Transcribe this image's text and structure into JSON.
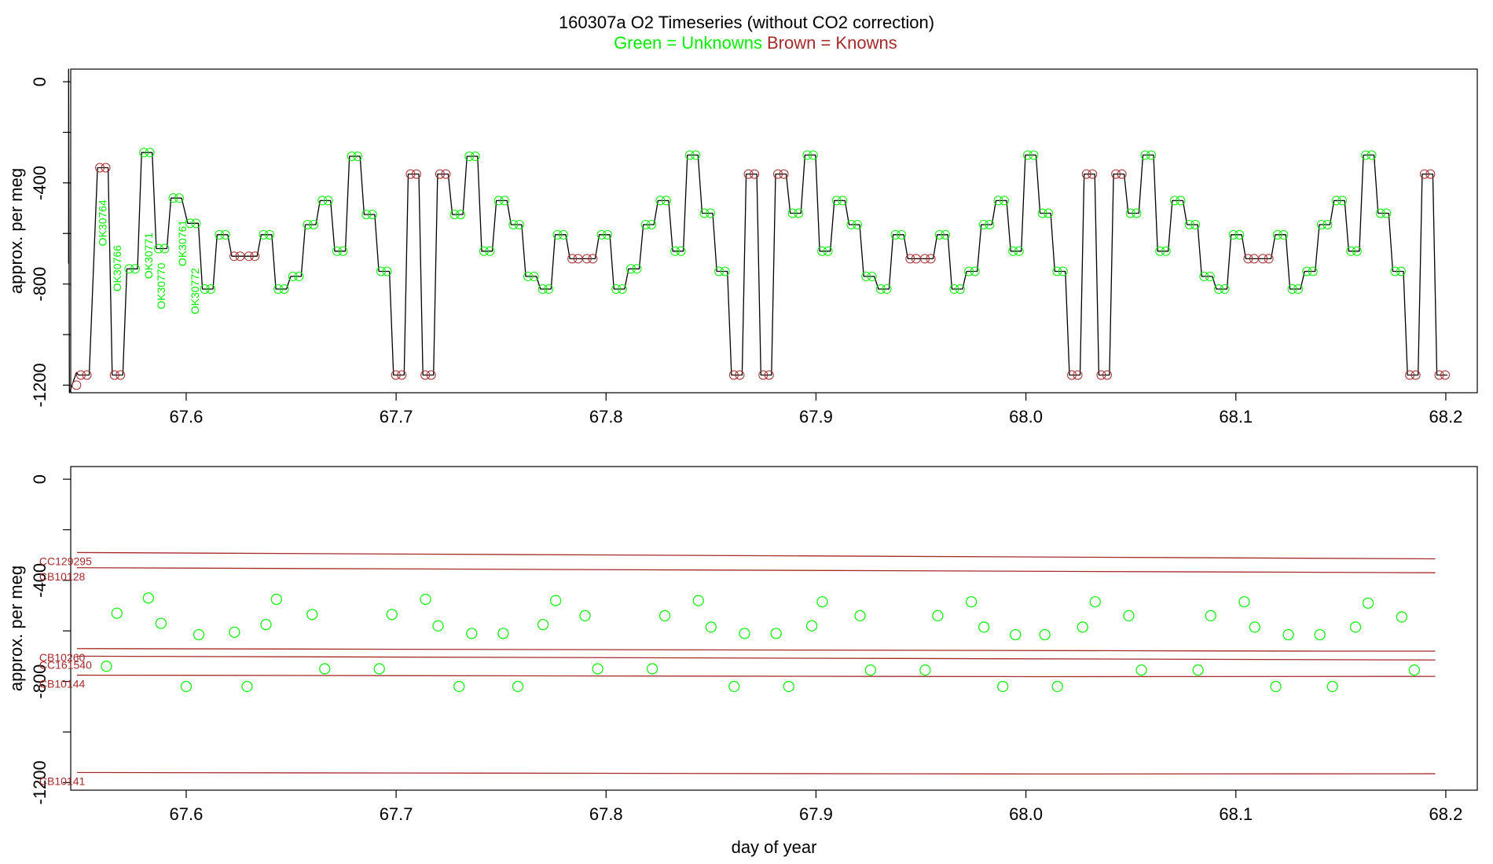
{
  "title": {
    "line1": "160307a   O2 Timeseries (without CO2 correction)",
    "green": "Green = Unknowns",
    "brown": "Brown = Knowns"
  },
  "colors": {
    "unknown": "#00ee00",
    "known": "#a52a2a",
    "trace": "#000000"
  },
  "chart_data": [
    {
      "type": "line",
      "title": "",
      "ylabel": "approx. per meg",
      "xlabel": "",
      "xlim": [
        67.545,
        68.215
      ],
      "ylim": [
        -1230,
        50
      ],
      "xticks": [
        "67.6",
        "67.7",
        "67.8",
        "67.9",
        "68.0",
        "68.1",
        "68.2"
      ],
      "yticks": [
        "0",
        "-400",
        "-800",
        "-1200"
      ],
      "unknown_labels": [
        {
          "text": "OK30764",
          "x": 67.562,
          "y": -650
        },
        {
          "text": "OK30766",
          "x": 67.569,
          "y": -830
        },
        {
          "text": "OK30771",
          "x": 67.584,
          "y": -780
        },
        {
          "text": "OK30770",
          "x": 67.59,
          "y": -900
        },
        {
          "text": "OK30761",
          "x": 67.6,
          "y": -730
        },
        {
          "text": "OK30772",
          "x": 67.606,
          "y": -920
        }
      ],
      "series": [
        {
          "x": [
            67.548,
            67.557,
            67.564,
            67.571,
            67.578,
            67.585,
            67.592,
            67.6,
            67.607,
            67.614,
            67.621,
            67.628,
            67.635,
            67.642,
            67.649,
            67.656,
            67.663,
            67.67,
            67.677,
            67.684,
            67.691,
            67.698,
            67.705,
            67.712,
            67.719,
            67.726,
            67.733,
            67.74,
            67.747,
            67.754,
            67.761,
            67.768,
            67.775,
            67.782,
            67.789,
            67.796,
            67.803,
            67.81,
            67.817,
            67.824,
            67.831,
            67.838,
            67.845,
            67.852,
            67.859,
            67.866,
            67.873,
            67.88,
            67.887,
            67.894,
            67.901,
            67.908,
            67.915,
            67.922,
            67.929,
            67.936,
            67.943,
            67.95,
            67.957,
            67.964,
            67.971,
            67.978,
            67.985,
            67.992,
            67.999,
            68.006,
            68.013,
            68.02,
            68.027,
            68.034,
            68.041,
            68.048,
            68.055,
            68.062,
            68.069,
            68.076,
            68.083,
            68.09,
            68.097,
            68.104,
            68.111,
            68.118,
            68.125,
            68.132,
            68.139,
            68.146,
            68.153,
            68.16,
            68.167,
            68.174,
            68.181,
            68.188,
            68.195
          ],
          "y": [
            -1160,
            -340,
            -1160,
            -740,
            -280,
            -660,
            -460,
            -560,
            -820,
            -605,
            -690,
            -690,
            -605,
            -820,
            -770,
            -565,
            -470,
            -670,
            -295,
            -525,
            -750,
            -1160,
            -365,
            -1160,
            -365,
            -525,
            -295,
            -670,
            -470,
            -565,
            -770,
            -820,
            -605,
            -700,
            -700,
            -605,
            -820,
            -740,
            -565,
            -470,
            -670,
            -290,
            -520,
            -750,
            -1160,
            -365,
            -1160,
            -365,
            -520,
            -290,
            -670,
            -470,
            -565,
            -770,
            -820,
            -605,
            -700,
            -700,
            -605,
            -820,
            -750,
            -565,
            -470,
            -670,
            -290,
            -520,
            -750,
            -1160,
            -365,
            -1160,
            -365,
            -520,
            -290,
            -670,
            -470,
            -565,
            -770,
            -820,
            -605,
            -700,
            -700,
            -605,
            -820,
            -750,
            -565,
            -470,
            -670,
            -290,
            -520,
            -750,
            -1160,
            -365,
            -1160
          ]
        }
      ]
    },
    {
      "type": "scatter",
      "title": "",
      "ylabel": "approx. per meg",
      "xlabel": "day of year",
      "xlim": [
        67.545,
        68.215
      ],
      "ylim": [
        -1230,
        50
      ],
      "xticks": [
        "67.6",
        "67.7",
        "67.8",
        "67.9",
        "68.0",
        "68.1",
        "68.2"
      ],
      "yticks": [
        "0",
        "-400",
        "-800",
        "-1200"
      ],
      "knowns": [
        {
          "name": "CC129295",
          "y_start": -290,
          "y_end": -315
        },
        {
          "name": "CB10128",
          "y_start": -350,
          "y_end": -370
        },
        {
          "name": "CB10260",
          "y_start": -670,
          "y_end": -680
        },
        {
          "name": "CC161540",
          "y_start": -700,
          "y_end": -715
        },
        {
          "name": "CB10144",
          "y_start": -775,
          "y_end": -780
        },
        {
          "name": "CB10141",
          "y_start": -1160,
          "y_end": -1165
        }
      ],
      "known_label_x": 67.53,
      "known_x_range": [
        67.548,
        68.195
      ],
      "unknowns": {
        "x": [
          67.562,
          67.567,
          67.582,
          67.588,
          67.6,
          67.606,
          67.623,
          67.629,
          67.638,
          67.643,
          67.66,
          67.666,
          67.692,
          67.698,
          67.714,
          67.72,
          67.73,
          67.736,
          67.751,
          67.758,
          67.77,
          67.776,
          67.79,
          67.796,
          67.822,
          67.828,
          67.844,
          67.85,
          67.861,
          67.866,
          67.881,
          67.887,
          67.898,
          67.903,
          67.921,
          67.926,
          67.952,
          67.958,
          67.974,
          67.98,
          67.989,
          67.995,
          68.009,
          68.015,
          68.027,
          68.033,
          68.049,
          68.055,
          68.082,
          68.088,
          68.104,
          68.109,
          68.119,
          68.125,
          68.14,
          68.146,
          68.157,
          68.163,
          68.179,
          68.185
        ],
        "y": [
          -740,
          -530,
          -470,
          -570,
          -820,
          -615,
          -605,
          -820,
          -575,
          -475,
          -535,
          -750,
          -750,
          -535,
          -475,
          -580,
          -820,
          -610,
          -610,
          -820,
          -575,
          -480,
          -540,
          -750,
          -750,
          -540,
          -480,
          -585,
          -820,
          -610,
          -610,
          -820,
          -580,
          -485,
          -540,
          -755,
          -755,
          -540,
          -485,
          -585,
          -820,
          -615,
          -615,
          -820,
          -585,
          -485,
          -540,
          -755,
          -755,
          -540,
          -485,
          -585,
          -820,
          -615,
          -615,
          -820,
          -585,
          -490,
          -545,
          -755
        ]
      }
    }
  ]
}
